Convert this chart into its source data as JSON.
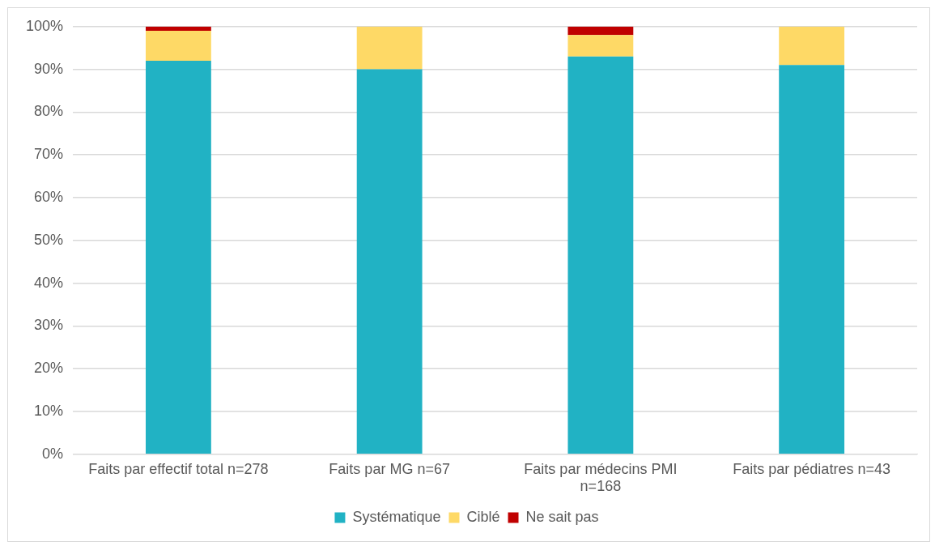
{
  "chart_data": {
    "type": "bar",
    "stacked": true,
    "categories": [
      "Faits par effectif total n=278",
      "Faits par MG n=67",
      "Faits par médecins PMI n=168",
      "Faits par pédiatres n=43"
    ],
    "series": [
      {
        "name": "Systématique",
        "color": "#21b2c4",
        "values": [
          92,
          90,
          93,
          91
        ]
      },
      {
        "name": "Ciblé",
        "color": "#fed966",
        "values": [
          7,
          10,
          5,
          9
        ]
      },
      {
        "name": "Ne sait pas",
        "color": "#c00000",
        "values": [
          1,
          0,
          2,
          0
        ]
      }
    ],
    "ylim": [
      0,
      100
    ],
    "yticks": [
      {
        "value": 0,
        "label": "0%"
      },
      {
        "value": 10,
        "label": "10%"
      },
      {
        "value": 20,
        "label": "20%"
      },
      {
        "value": 30,
        "label": "30%"
      },
      {
        "value": 40,
        "label": "40%"
      },
      {
        "value": 50,
        "label": "50%"
      },
      {
        "value": 60,
        "label": "60%"
      },
      {
        "value": 70,
        "label": "70%"
      },
      {
        "value": 80,
        "label": "80%"
      },
      {
        "value": 90,
        "label": "90%"
      },
      {
        "value": 100,
        "label": "100%"
      }
    ],
    "grid": "y",
    "legend": "bottom"
  }
}
